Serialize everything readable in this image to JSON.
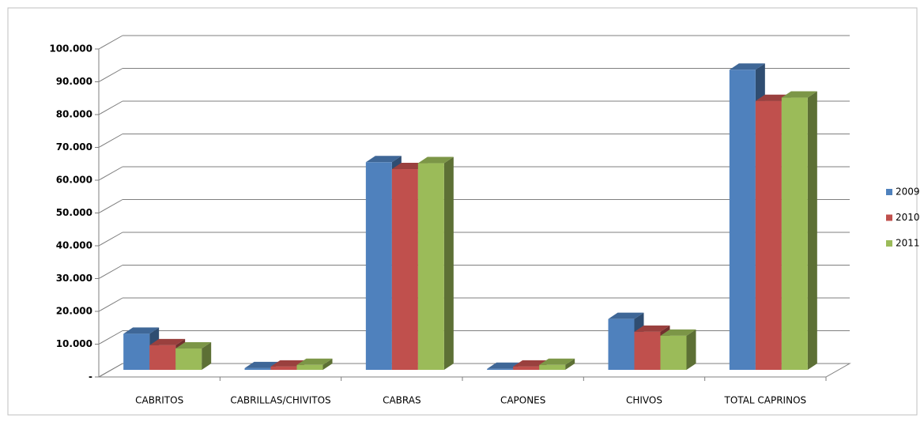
{
  "chart_data": {
    "type": "bar3d",
    "categories": [
      "CABRITOS",
      "CABRILLAS/CHIVITOS",
      "CABRAS",
      "CAPONES",
      "CHIVOS",
      "TOTAL CAPRINOS"
    ],
    "series": [
      {
        "name": "2009",
        "color": "#4f81bd",
        "values": [
          11000,
          500,
          63300,
          300,
          15500,
          91500
        ]
      },
      {
        "name": "2010",
        "color": "#c0504d",
        "values": [
          7500,
          1000,
          61200,
          1000,
          11600,
          82000
        ]
      },
      {
        "name": "2011",
        "color": "#9bbb59",
        "values": [
          6500,
          1500,
          63000,
          1500,
          10400,
          83000
        ]
      }
    ],
    "ylim": [
      0,
      100000
    ],
    "yticks": [
      {
        "value": 0,
        "label": "-"
      },
      {
        "value": 10000,
        "label": "10.000"
      },
      {
        "value": 20000,
        "label": "20.000"
      },
      {
        "value": 30000,
        "label": "30.000"
      },
      {
        "value": 40000,
        "label": "40.000"
      },
      {
        "value": 50000,
        "label": "50.000"
      },
      {
        "value": 60000,
        "label": "60.000"
      },
      {
        "value": 70000,
        "label": "70.000"
      },
      {
        "value": 80000,
        "label": "80.000"
      },
      {
        "value": 90000,
        "label": "90.000"
      },
      {
        "value": 100000,
        "label": "100.000"
      }
    ],
    "grid": true,
    "legend": "right"
  }
}
